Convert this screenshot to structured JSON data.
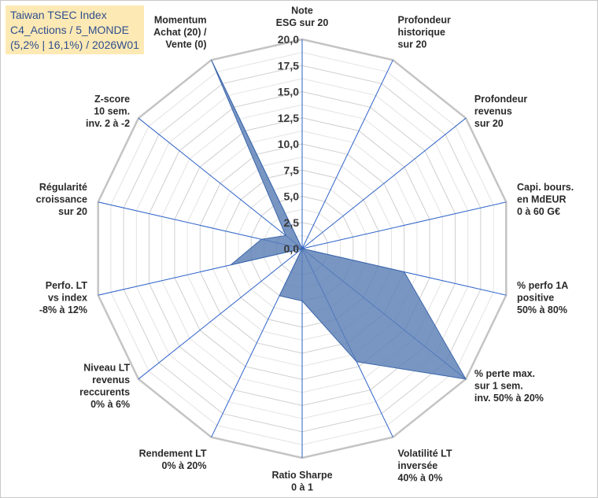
{
  "title_box": {
    "line1": "Taiwan TSEC Index",
    "line2": "C4_Actions / 5_MONDE",
    "line3": "(5,2% | 16,1%) / 2026W01"
  },
  "chart_data": {
    "type": "radar",
    "title": "Taiwan TSEC Index C4_Actions / 5_MONDE (5,2% | 16,1%) / 2026W01",
    "rmin": 0,
    "rmax": 20,
    "ticks": [
      "0,0",
      "2,5",
      "5,0",
      "7,5",
      "10,0",
      "12,5",
      "15,0",
      "17,5",
      "20,0"
    ],
    "tick_values": [
      0,
      2.5,
      5,
      7.5,
      10,
      12.5,
      15,
      17.5,
      20
    ],
    "categories": [
      [
        "Note",
        "ESG sur 20"
      ],
      [
        "Profondeur",
        "historique",
        "sur 20"
      ],
      [
        "Profondeur",
        "revenus",
        "sur 20"
      ],
      [
        "Capi. bours.",
        "en MdEUR",
        "0 à 60 G€"
      ],
      [
        "% perfo 1A",
        "positive",
        "50% à 80%"
      ],
      [
        "% perte max.",
        "sur 1 sem.",
        "inv. 50% à 20%"
      ],
      [
        "Volatilité LT",
        "inversée",
        "40% à 0%"
      ],
      [
        "Ratio Sharpe",
        "0 à 1"
      ],
      [
        "Rendement LT",
        "0% à 20%"
      ],
      [
        "Niveau LT",
        "revenus",
        "reccurents",
        "0% à 6%"
      ],
      [
        "Perfo. LT",
        "vs index",
        "-8% à 12%"
      ],
      [
        "Régularité",
        "croissance",
        "sur 20"
      ],
      [
        "Z-score",
        "10 sem.",
        "inv. 2 à -2"
      ],
      [
        "Momentum",
        "Achat (20) /",
        "Vente (0)"
      ]
    ],
    "series": [
      {
        "name": "Taiwan TSEC Index",
        "values": [
          0,
          0,
          0,
          0,
          10,
          20,
          12,
          5,
          5,
          0,
          7,
          4,
          2,
          20
        ],
        "color": "#5b7fb6"
      }
    ],
    "grid": true
  }
}
